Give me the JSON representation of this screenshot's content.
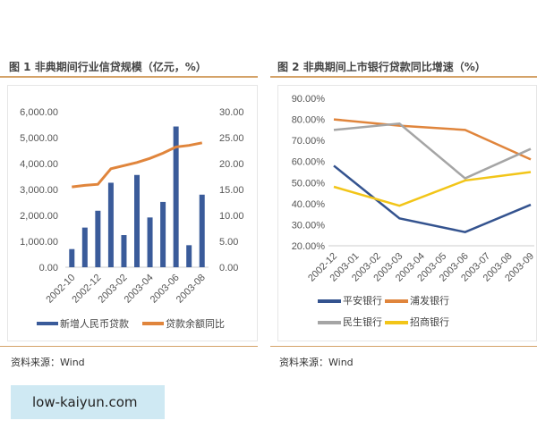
{
  "chart_data": [
    {
      "type": "bar+line",
      "title": "图 1 非典期间行业信贷规模（亿元，%）",
      "categories": [
        "2002-10",
        "2002-11",
        "2002-12",
        "2003-01",
        "2003-02",
        "2003-03",
        "2003-04",
        "2003-05",
        "2003-06",
        "2003-07",
        "2003-08"
      ],
      "tick_labels": [
        "2002-10",
        "2002-12",
        "2003-02",
        "2003-04",
        "2003-06",
        "2003-08"
      ],
      "left_ticks": [
        "0.00",
        "1,000.00",
        "2,000.00",
        "3,000.00",
        "4,000.00",
        "5,000.00",
        "6,000.00"
      ],
      "right_ticks": [
        "0.00",
        "5.00",
        "10.00",
        "15.00",
        "20.00",
        "25.00",
        "30.00"
      ],
      "ylim_left": [
        0,
        6000
      ],
      "ylim_right": [
        0,
        30
      ],
      "series": [
        {
          "name": "新增人民币贷款",
          "type": "bar",
          "axis": "left",
          "color": "#3a5b9a",
          "values": [
            700,
            1530,
            2180,
            3260,
            1240,
            3560,
            1920,
            2520,
            5430,
            850,
            2800
          ]
        },
        {
          "name": "贷款余额同比",
          "type": "line",
          "axis": "right",
          "color": "#e0853c",
          "values": [
            15.5,
            15.8,
            16.0,
            19.0,
            19.6,
            20.2,
            21.0,
            22.0,
            23.2,
            23.5,
            24.0
          ]
        }
      ],
      "legend": "bottom",
      "grid": false
    },
    {
      "type": "line",
      "title": "图 2 非典期间上市银行贷款同比增速（%）",
      "categories": [
        "2002-12",
        "2003-01",
        "2003-02",
        "2003-03",
        "2003-04",
        "2003-05",
        "2003-06",
        "2003-07",
        "2003-08",
        "2003-09"
      ],
      "y_ticks": [
        "20.00%",
        "30.00%",
        "40.00%",
        "50.00%",
        "60.00%",
        "70.00%",
        "80.00%",
        "90.00%"
      ],
      "ylim": [
        20,
        90
      ],
      "series": [
        {
          "name": "平安银行",
          "color": "#34538f",
          "values": [
            58,
            null,
            null,
            33,
            null,
            null,
            26.5,
            null,
            null,
            39.5
          ]
        },
        {
          "name": "浦发银行",
          "color": "#e0853c",
          "values": [
            80,
            null,
            null,
            77,
            null,
            null,
            75,
            null,
            null,
            61
          ]
        },
        {
          "name": "民生银行",
          "color": "#a5a5a5",
          "values": [
            75,
            null,
            null,
            78,
            null,
            null,
            52,
            null,
            null,
            66
          ]
        },
        {
          "name": "招商银行",
          "color": "#f2c518",
          "values": [
            48,
            null,
            null,
            39,
            null,
            null,
            51,
            null,
            null,
            55
          ]
        }
      ],
      "legend": "bottom",
      "grid": false
    }
  ],
  "source1": "资料来源：Wind",
  "source2": "资料来源：Wind",
  "watermark": "low-kaiyun.com"
}
